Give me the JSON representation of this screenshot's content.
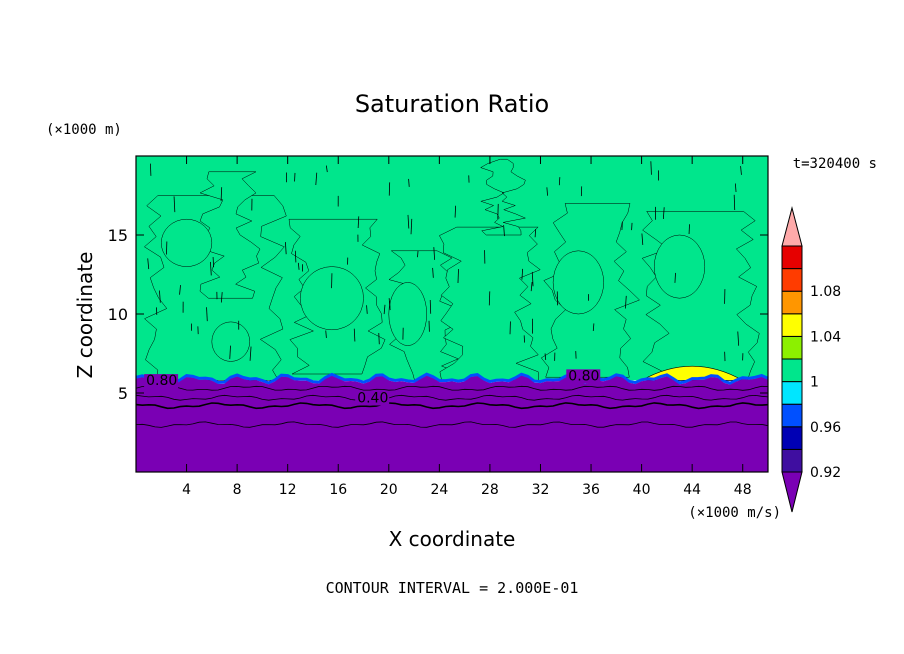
{
  "chart_data": {
    "type": "heatmap",
    "title": "Saturation Ratio",
    "xlabel": "X coordinate",
    "ylabel": "Z coordinate",
    "x_units": "(×1000 m/s)",
    "y_units": "(×1000 m)",
    "time_label": "t=320400 s",
    "footer": "CONTOUR INTERVAL = 2.000E-01",
    "xlim": [
      0,
      50
    ],
    "ylim": [
      0,
      20
    ],
    "x_ticks": [
      4,
      8,
      12,
      16,
      20,
      24,
      28,
      32,
      36,
      40,
      44,
      48
    ],
    "y_ticks": [
      5,
      10,
      15
    ],
    "colorbar": {
      "levels": [
        0.92,
        0.94,
        0.96,
        0.98,
        1.0,
        1.02,
        1.04,
        1.06,
        1.08,
        1.1
      ],
      "colors": [
        "#3f0ea0",
        "#0000b4",
        "#0050ff",
        "#00e6ff",
        "#00e68c",
        "#8cf000",
        "#ffff00",
        "#ff9600",
        "#ff3c00",
        "#e60000"
      ],
      "under_color": "#7a00b4",
      "over_color": "#ffaaaa",
      "tick_labels": [
        "0.92",
        "0.96",
        "1",
        "1.04",
        "1.08"
      ],
      "tick_values": [
        0.92,
        0.96,
        1.0,
        1.04,
        1.08
      ]
    },
    "contour_labels": [
      {
        "text": "0.80",
        "x": 0.8,
        "z": 5.5
      },
      {
        "text": "0.40",
        "x": 17.5,
        "z": 4.4
      },
      {
        "text": "0.80",
        "x": 34.2,
        "z": 5.8
      }
    ],
    "regions": {
      "subsaturated_layer_top_km": 5.8,
      "lower_layer_value": 0.4,
      "upper_region_value": 1.0,
      "supersaturated_patch": {
        "x_range": [
          40,
          48
        ],
        "z_peak": 7.0,
        "value": 1.04
      }
    }
  }
}
